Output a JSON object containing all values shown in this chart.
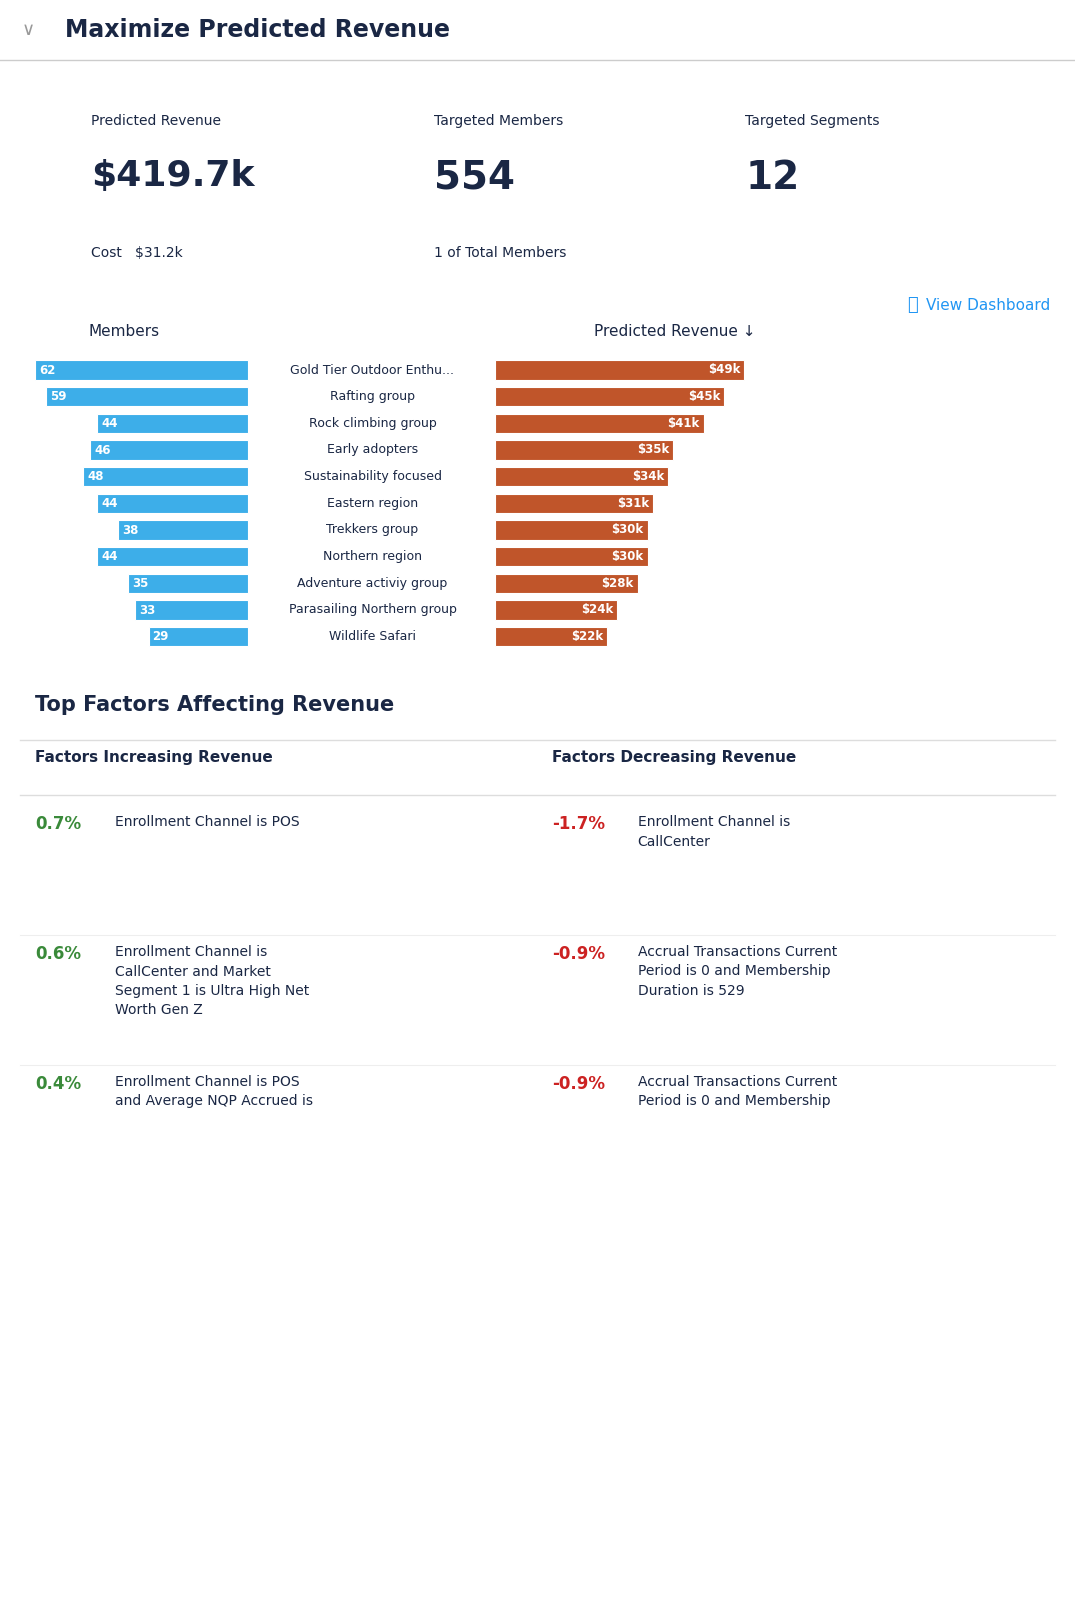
{
  "title": "Maximize Predicted Revenue",
  "header_bg": "#dce6f0",
  "predicted_revenue": "$419.7k",
  "targeted_members": "554",
  "targeted_segments": "12",
  "cost": "$31.2k",
  "members_subtitle": "1 of Total Members",
  "segments": [
    "Gold Tier Outdoor Enthu...",
    "Rafting group",
    "Rock climbing group",
    "Early adopters",
    "Sustainability focused",
    "Eastern region",
    "Trekkers group",
    "Northern region",
    "Adventure activiy group",
    "Parasailing Northern group",
    "Wildlife Safari"
  ],
  "members_values": [
    62,
    59,
    44,
    46,
    48,
    44,
    38,
    44,
    35,
    33,
    29
  ],
  "revenue_values": [
    49,
    45,
    41,
    35,
    34,
    31,
    30,
    30,
    28,
    24,
    22
  ],
  "revenue_labels": [
    "$49k",
    "$45k",
    "$41k",
    "$35k",
    "$34k",
    "$31k",
    "$30k",
    "$30k",
    "$28k",
    "$24k",
    "$22k"
  ],
  "bar_color_blue": "#3daee9",
  "bar_color_orange": "#c0552a",
  "factors_title": "Top Factors Affecting Revenue",
  "factors_increasing_title": "Factors Increasing Revenue",
  "factors_decreasing_title": "Factors Decreasing Revenue",
  "increasing_factors": [
    {
      "pct": "0.7%",
      "text": "Enrollment Channel is POS"
    },
    {
      "pct": "0.6%",
      "text": "Enrollment Channel is\nCallCenter and Market\nSegment 1 is Ultra High Net\nWorth Gen Z"
    },
    {
      "pct": "0.4%",
      "text": "Enrollment Channel is POS\nand Average NQP Accrued is"
    }
  ],
  "decreasing_factors": [
    {
      "pct": "-1.7%",
      "text": "Enrollment Channel is\nCallCenter"
    },
    {
      "pct": "-0.9%",
      "text": "Accrual Transactions Current\nPeriod is 0 and Membership\nDuration is 529"
    },
    {
      "pct": "-0.9%",
      "text": "Accrual Transactions Current\nPeriod is 0 and Membership"
    }
  ],
  "increasing_color": "#3a8a3a",
  "decreasing_color": "#cc2222",
  "bg_white": "#ffffff",
  "text_dark": "#1a2744",
  "link_color": "#2196F3"
}
